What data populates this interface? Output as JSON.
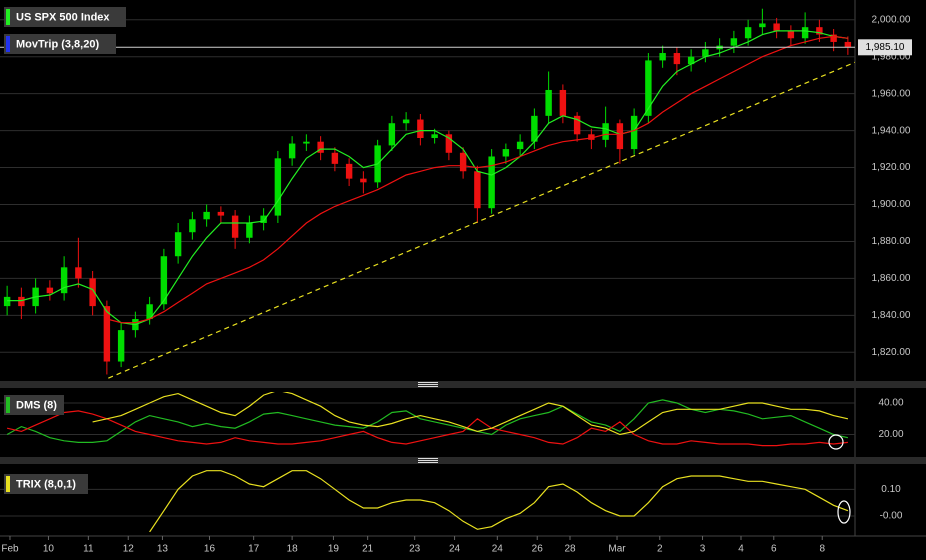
{
  "chart_data": [
    {
      "type": "candlestick",
      "title": "US SPX 500 Index",
      "overlay_title": "MovTrip (3,8,20)",
      "up_color": "#00dd00",
      "down_color": "#ee1111",
      "open": [
        1845,
        1850,
        1845,
        1855,
        1852,
        1866,
        1860,
        1845,
        1815,
        1832,
        1838,
        1846,
        1872,
        1885,
        1892,
        1896,
        1894,
        1882,
        1890,
        1894,
        1925,
        1933,
        1934,
        1928,
        1922,
        1914,
        1912,
        1932,
        1944,
        1946,
        1936,
        1938,
        1928,
        1918,
        1898,
        1926,
        1930,
        1934,
        1948,
        1962,
        1948,
        1938,
        1935,
        1944,
        1930,
        1948,
        1978,
        1982,
        1976,
        1980,
        1984,
        1986,
        1990,
        1996,
        1998,
        1994,
        1990,
        1996,
        1992,
        1988
      ],
      "high": [
        1856,
        1855,
        1860,
        1859,
        1872,
        1882,
        1864,
        1848,
        1836,
        1842,
        1850,
        1876,
        1890,
        1896,
        1900,
        1899,
        1897,
        1894,
        1898,
        1929,
        1937,
        1938,
        1937,
        1931,
        1925,
        1918,
        1935,
        1948,
        1950,
        1949,
        1941,
        1940,
        1931,
        1921,
        1930,
        1933,
        1938,
        1952,
        1972,
        1965,
        1950,
        1941,
        1953,
        1946,
        1952,
        1982,
        1986,
        1985,
        1984,
        1988,
        1990,
        1994,
        2000,
        2006,
        2001,
        1997,
        2004,
        2000,
        1995,
        1991
      ],
      "low": [
        1840,
        1838,
        1841,
        1848,
        1848,
        1855,
        1840,
        1808,
        1812,
        1828,
        1835,
        1843,
        1868,
        1881,
        1888,
        1890,
        1876,
        1879,
        1886,
        1890,
        1921,
        1929,
        1924,
        1918,
        1910,
        1906,
        1909,
        1929,
        1940,
        1932,
        1933,
        1924,
        1914,
        1890,
        1895,
        1922,
        1926,
        1930,
        1944,
        1944,
        1934,
        1930,
        1931,
        1922,
        1927,
        1944,
        1974,
        1970,
        1972,
        1977,
        1980,
        1982,
        1986,
        1992,
        1990,
        1986,
        1987,
        1988,
        1983,
        1981
      ],
      "close": [
        1850,
        1845,
        1855,
        1852,
        1866,
        1860,
        1845,
        1815,
        1832,
        1838,
        1846,
        1872,
        1885,
        1892,
        1896,
        1894,
        1882,
        1890,
        1894,
        1925,
        1933,
        1934,
        1928,
        1922,
        1914,
        1912,
        1932,
        1944,
        1946,
        1936,
        1938,
        1928,
        1918,
        1898,
        1926,
        1930,
        1934,
        1948,
        1962,
        1948,
        1938,
        1935,
        1944,
        1930,
        1948,
        1978,
        1982,
        1976,
        1980,
        1984,
        1986,
        1990,
        1996,
        1998,
        1994,
        1990,
        1996,
        1992,
        1988,
        1985
      ],
      "series": [
        {
          "color": "#22ee22",
          "values": [
            1848,
            1848,
            1850,
            1851,
            1855,
            1857,
            1854,
            1842,
            1836,
            1835,
            1838,
            1848,
            1860,
            1872,
            1882,
            1890,
            1890,
            1890,
            1891,
            1902,
            1914,
            1925,
            1930,
            1930,
            1926,
            1920,
            1922,
            1930,
            1938,
            1940,
            1940,
            1936,
            1930,
            1918,
            1916,
            1920,
            1926,
            1934,
            1944,
            1948,
            1946,
            1942,
            1941,
            1938,
            1940,
            1952,
            1964,
            1972,
            1976,
            1980,
            1982,
            1985,
            1988,
            1992,
            1994,
            1994,
            1994,
            1993,
            1991,
            1990
          ]
        },
        {
          "color": "#ee1111",
          "values": [
            null,
            null,
            null,
            null,
            null,
            null,
            null,
            1838,
            1836,
            1836,
            1838,
            1842,
            1847,
            1852,
            1857,
            1860,
            1863,
            1866,
            1870,
            1876,
            1883,
            1890,
            1895,
            1899,
            1902,
            1905,
            1908,
            1912,
            1916,
            1918,
            1920,
            1921,
            1921,
            1920,
            1921,
            1923,
            1926,
            1929,
            1932,
            1934,
            1935,
            1936,
            1938,
            1938,
            1940,
            1944,
            1950,
            1955,
            1960,
            1964,
            1968,
            1972,
            1976,
            1980,
            1983,
            1986,
            1988,
            1990,
            1991,
            1990
          ]
        }
      ],
      "trendline": {
        "color": "#e8e020",
        "x": [
          7.6,
          60
        ],
        "values": [
          1806,
          1977
        ]
      },
      "last_price": {
        "value": 1985.1,
        "label": "1,985.10"
      },
      "xlim": [
        0,
        60
      ],
      "xticks": [
        {
          "value": 0.7,
          "label": "Feb"
        },
        {
          "value": 3.4,
          "label": "10"
        },
        {
          "value": 6.2,
          "label": "11"
        },
        {
          "value": 9.0,
          "label": "12"
        },
        {
          "value": 11.4,
          "label": "13"
        },
        {
          "value": 14.7,
          "label": "16"
        },
        {
          "value": 17.8,
          "label": "17"
        },
        {
          "value": 20.5,
          "label": "18"
        },
        {
          "value": 23.4,
          "label": "19"
        },
        {
          "value": 25.8,
          "label": "21"
        },
        {
          "value": 29.1,
          "label": "23"
        },
        {
          "value": 31.9,
          "label": "24"
        },
        {
          "value": 34.9,
          "label": "24"
        },
        {
          "value": 37.7,
          "label": "26"
        },
        {
          "value": 40.0,
          "label": "28"
        },
        {
          "value": 43.3,
          "label": "Mar"
        },
        {
          "value": 46.3,
          "label": "2"
        },
        {
          "value": 49.3,
          "label": "3"
        },
        {
          "value": 52.0,
          "label": "4"
        },
        {
          "value": 54.3,
          "label": "6"
        },
        {
          "value": 57.7,
          "label": "8"
        }
      ],
      "ylim": [
        1805,
        2008
      ],
      "yticks": [
        {
          "value": 1820,
          "label": "1,820.00"
        },
        {
          "value": 1840,
          "label": "1,840.00"
        },
        {
          "value": 1860,
          "label": "1,860.00"
        },
        {
          "value": 1880,
          "label": "1,880.00"
        },
        {
          "value": 1900,
          "label": "1,900.00"
        },
        {
          "value": 1920,
          "label": "1,920.00"
        },
        {
          "value": 1940,
          "label": "1,940.00"
        },
        {
          "value": 1960,
          "label": "1,960.00"
        },
        {
          "value": 1980,
          "label": "1,980.00"
        },
        {
          "value": 2000,
          "label": "2,000.00"
        }
      ],
      "grid": true
    },
    {
      "type": "line",
      "title": "DMS (8)",
      "series": [
        {
          "color": "#22bb22",
          "values": [
            20,
            25,
            22,
            18,
            16,
            15,
            15,
            16,
            22,
            28,
            32,
            30,
            28,
            25,
            27,
            25,
            24,
            28,
            33,
            34,
            32,
            30,
            28,
            26,
            25,
            24,
            28,
            34,
            35,
            30,
            28,
            26,
            24,
            22,
            20,
            26,
            30,
            32,
            34,
            38,
            33,
            28,
            26,
            22,
            30,
            40,
            42,
            40,
            36,
            34,
            36,
            35,
            33,
            30,
            31,
            32,
            28,
            24,
            20,
            18
          ]
        },
        {
          "color": "#ee1111",
          "values": [
            24,
            22,
            26,
            30,
            34,
            35,
            33,
            30,
            26,
            22,
            20,
            18,
            16,
            15,
            14,
            15,
            18,
            16,
            15,
            14,
            14,
            15,
            16,
            18,
            20,
            22,
            18,
            15,
            14,
            16,
            18,
            20,
            22,
            30,
            24,
            22,
            20,
            18,
            15,
            14,
            18,
            24,
            22,
            28,
            20,
            16,
            14,
            14,
            16,
            15,
            14,
            14,
            14,
            13,
            13,
            14,
            14,
            15,
            14,
            15
          ]
        },
        {
          "color": "#e8e020",
          "values": [
            null,
            null,
            null,
            null,
            null,
            null,
            28,
            30,
            32,
            36,
            40,
            44,
            46,
            42,
            38,
            34,
            32,
            38,
            45,
            48,
            46,
            42,
            38,
            32,
            28,
            26,
            25,
            27,
            30,
            32,
            30,
            28,
            25,
            22,
            24,
            28,
            32,
            36,
            40,
            38,
            32,
            26,
            24,
            20,
            22,
            28,
            34,
            36,
            36,
            36,
            36,
            38,
            40,
            40,
            38,
            36,
            36,
            35,
            32,
            30
          ]
        }
      ],
      "xlim": [
        0,
        60
      ],
      "ylim": [
        7,
        47
      ],
      "yticks": [
        {
          "value": 20,
          "label": "20.00"
        },
        {
          "value": 40,
          "label": "40.00"
        }
      ],
      "grid": true
    },
    {
      "type": "line",
      "title": "TRIX (8,0,1)",
      "series": [
        {
          "color": "#e8e020",
          "values": [
            null,
            null,
            null,
            null,
            null,
            null,
            null,
            null,
            null,
            null,
            -0.06,
            0.02,
            0.1,
            0.15,
            0.17,
            0.17,
            0.15,
            0.12,
            0.11,
            0.14,
            0.17,
            0.17,
            0.14,
            0.1,
            0.06,
            0.03,
            0.03,
            0.05,
            0.06,
            0.06,
            0.05,
            0.02,
            -0.02,
            -0.05,
            -0.04,
            -0.01,
            0.01,
            0.05,
            0.11,
            0.12,
            0.09,
            0.05,
            0.02,
            0.0,
            0.0,
            0.05,
            0.11,
            0.14,
            0.15,
            0.15,
            0.15,
            0.14,
            0.13,
            0.13,
            0.12,
            0.11,
            0.1,
            0.07,
            0.04,
            0.02
          ]
        }
      ],
      "xlim": [
        0,
        60
      ],
      "ylim": [
        -0.06,
        0.18
      ],
      "yticks": [
        {
          "value": 0,
          "label": "-0.00"
        },
        {
          "value": 0.1,
          "label": "0.10"
        }
      ],
      "grid": true
    }
  ]
}
